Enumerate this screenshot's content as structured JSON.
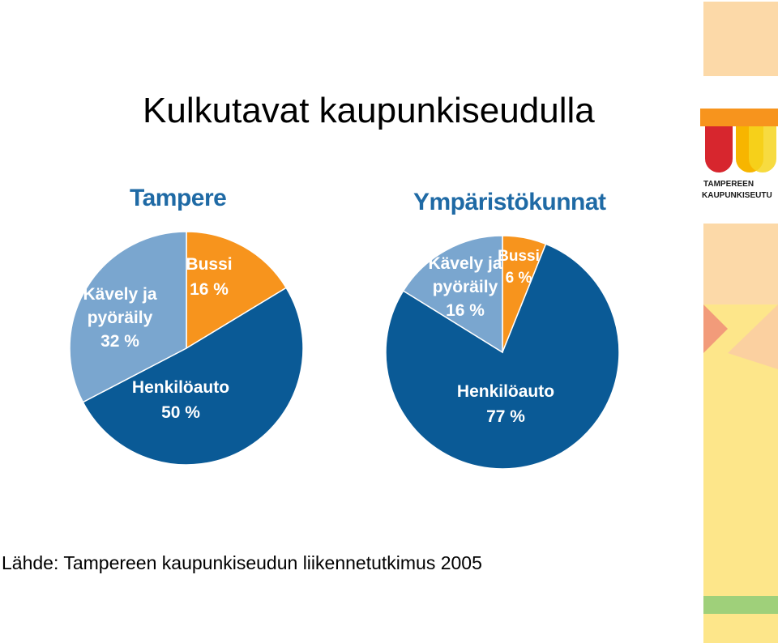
{
  "page": {
    "title": "Kulkutavat kaupunkiseudulla",
    "source": "Lähde: Tampereen kaupunkiseudun liikennetutkimus 2005"
  },
  "logo": {
    "text_line1": "TAMPEREEN",
    "text_line2": "KAUPUNKISEUTU",
    "colors": [
      "#d7262e",
      "#f7b500",
      "#f6d51e"
    ]
  },
  "colors": {
    "auto": "#0a5a96",
    "bussi": "#f7941d",
    "kavely": "#7aa6cf",
    "chart_title": "#1f6aa5",
    "label_light": "#ffffff",
    "label_dark": "#1f5a8f",
    "side_strip": [
      "#fcd9a8",
      "#f7941d",
      "#fde68a",
      "#9fd07a"
    ]
  },
  "chart_data": [
    {
      "type": "pie",
      "title": "Tampere",
      "slices": [
        {
          "label": "Bussi",
          "value": 16,
          "value_text": "16 %",
          "color": "#f7941d"
        },
        {
          "label": "Henkilöauto",
          "value": 50,
          "value_text": "50 %",
          "color": "#0a5a96"
        },
        {
          "label": "Kävely ja pyöräily",
          "label_lines": [
            "Kävely ja",
            "pyöräily"
          ],
          "value": 32,
          "value_text": "32 %",
          "color": "#7aa6cf"
        }
      ]
    },
    {
      "type": "pie",
      "title": "Ympäristökunnat",
      "slices": [
        {
          "label": "Bussi",
          "value": 6,
          "value_text": "6 %",
          "color": "#f7941d"
        },
        {
          "label": "Henkilöauto",
          "value": 77,
          "value_text": "77 %",
          "color": "#0a5a96"
        },
        {
          "label": "Kävely ja pyöräily",
          "label_lines": [
            "Kävely ja",
            "pyöräily"
          ],
          "value": 16,
          "value_text": "16 %",
          "color": "#7aa6cf"
        }
      ]
    }
  ]
}
